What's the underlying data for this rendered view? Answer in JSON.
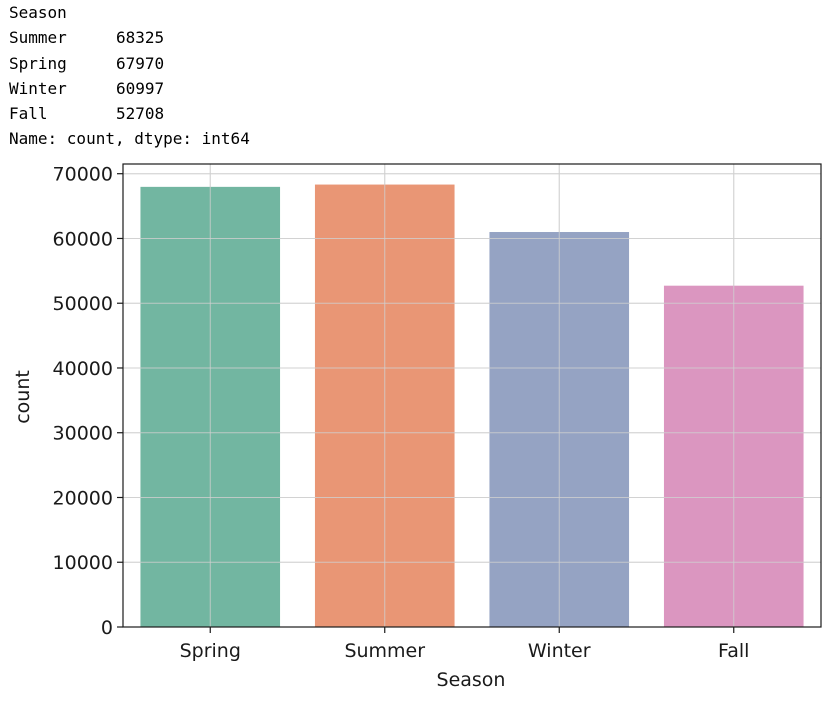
{
  "console": {
    "header": "Season",
    "rows": [
      {
        "category": "Summer",
        "value": "68325"
      },
      {
        "category": "Spring",
        "value": "67970"
      },
      {
        "category": "Winter",
        "value": "60997"
      },
      {
        "category": "Fall",
        "value": "52708"
      }
    ],
    "footer": "Name: count, dtype: int64"
  },
  "chart_data": {
    "type": "bar",
    "categories": [
      "Spring",
      "Summer",
      "Winter",
      "Fall"
    ],
    "values": [
      67970,
      68325,
      60997,
      52708
    ],
    "colors": [
      "#72b6a1",
      "#e99675",
      "#95a3c3",
      "#db96c0"
    ],
    "xlabel": "Season",
    "ylabel": "count",
    "ylim": [
      0,
      71500
    ],
    "yticks": [
      0,
      10000,
      20000,
      30000,
      40000,
      50000,
      60000,
      70000
    ],
    "ytick_labels": [
      "0",
      "10000",
      "20000",
      "30000",
      "40000",
      "50000",
      "60000",
      "70000"
    ],
    "grid": true,
    "legend": "none"
  }
}
